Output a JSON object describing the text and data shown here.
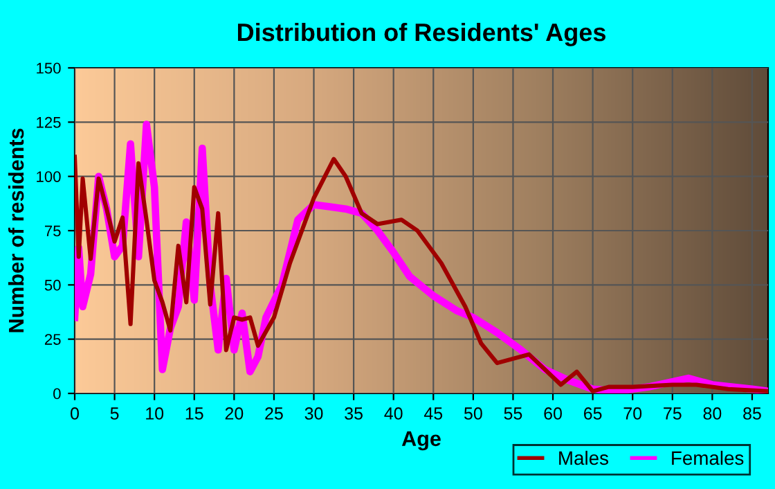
{
  "chart_data": {
    "type": "line",
    "title": "Distribution of Residents' Ages",
    "xlabel": "Age",
    "ylabel": "Number of residents",
    "xlim": [
      0,
      87
    ],
    "xticks": [
      0,
      5,
      10,
      15,
      20,
      25,
      30,
      35,
      40,
      45,
      50,
      55,
      60,
      65,
      70,
      75,
      80,
      85
    ],
    "ylim": [
      0,
      150
    ],
    "yticks": [
      0,
      25,
      50,
      75,
      100,
      125,
      150
    ],
    "grid": true,
    "legend": "bottom right",
    "line_style": "solid",
    "marker": "none",
    "series": [
      {
        "name": "Males",
        "color": "#a00000",
        "x": [
          0,
          0.5,
          1,
          2,
          3,
          4,
          5,
          6,
          7,
          8,
          9,
          10,
          11,
          12,
          13,
          14,
          15,
          16,
          17,
          18,
          19,
          20,
          21,
          22,
          23,
          25,
          27,
          30,
          32.5,
          34,
          36,
          38,
          41,
          43,
          46,
          49,
          51,
          53,
          55,
          57,
          59,
          61,
          63,
          65,
          67,
          70,
          75,
          78,
          82,
          87
        ],
        "values": [
          109,
          63,
          99,
          62,
          99,
          85,
          70,
          81,
          32,
          106,
          80,
          52,
          42,
          29,
          68,
          42,
          95,
          85,
          41,
          83,
          20,
          35,
          34,
          35,
          22,
          35,
          60,
          90,
          108,
          100,
          83,
          78,
          80,
          75,
          60,
          40,
          23,
          14,
          16,
          18,
          11,
          4,
          10,
          1,
          3,
          3,
          4,
          4,
          2,
          1
        ]
      },
      {
        "name": "Females",
        "color": "#ff00ff",
        "x": [
          0,
          0.5,
          1,
          2,
          3,
          4,
          5,
          6,
          7,
          8,
          9,
          10,
          11,
          12,
          13,
          14,
          15,
          16,
          17,
          18,
          19,
          20,
          21,
          22,
          23,
          24,
          26,
          28,
          30,
          32,
          34,
          36,
          38,
          40,
          42,
          45,
          48,
          50,
          53,
          56,
          59,
          62,
          65,
          68,
          72,
          77,
          80,
          85,
          87
        ],
        "values": [
          35,
          67,
          40,
          55,
          100,
          85,
          63,
          68,
          115,
          63,
          124,
          95,
          11,
          30,
          40,
          79,
          43,
          113,
          50,
          20,
          53,
          20,
          37,
          10,
          17,
          35,
          50,
          80,
          87,
          86,
          85,
          83,
          75,
          65,
          54,
          45,
          38,
          35,
          28,
          20,
          11,
          6,
          2,
          1,
          3,
          7,
          4,
          2,
          1
        ]
      }
    ]
  }
}
